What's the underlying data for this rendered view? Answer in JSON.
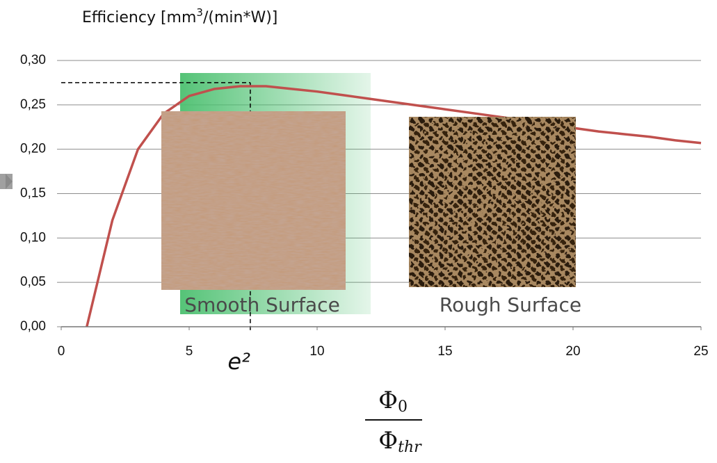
{
  "chart_data": {
    "type": "line",
    "y_label": {
      "text": "Efficiency  [mm",
      "superscript": "3",
      "suffix": "/(min*W)]"
    },
    "x_label": {
      "numerator": "Φ",
      "numerator_subscript": "0",
      "denominator": "Φ",
      "denominator_subscript": "thr"
    },
    "x": [
      1,
      2,
      3,
      4,
      5,
      6,
      7,
      8,
      9,
      10,
      11,
      12,
      13,
      14,
      15,
      16,
      17,
      18,
      19,
      20,
      21,
      22,
      23,
      24,
      25
    ],
    "values": [
      0,
      0.12,
      0.2,
      0.24,
      0.26,
      0.268,
      0.271,
      0.271,
      0.268,
      0.265,
      0.261,
      0.257,
      0.253,
      0.249,
      0.245,
      0.241,
      0.237,
      0.233,
      0.228,
      0.224,
      0.22,
      0.217,
      0.214,
      0.21,
      0.207
    ],
    "color": "#c0504d",
    "xlim": [
      0,
      25
    ],
    "xticks": [
      0,
      5,
      10,
      15,
      20,
      25
    ],
    "ylim": [
      0,
      0.3
    ],
    "yticks": [
      {
        "value": 0,
        "label": "0,00"
      },
      {
        "value": 0.05,
        "label": "0,05"
      },
      {
        "value": 0.1,
        "label": "0,10"
      },
      {
        "value": 0.15,
        "label": "0,15"
      },
      {
        "value": 0.2,
        "label": "0,20"
      },
      {
        "value": 0.25,
        "label": "0,25"
      },
      {
        "value": 0.3,
        "label": "0,30"
      }
    ],
    "grid": true,
    "annotation": {
      "text": "e²",
      "x": 7.389,
      "y": 0.275
    },
    "images": [
      {
        "label": "Smooth Surface"
      },
      {
        "label": "Rough Surface"
      }
    ]
  }
}
